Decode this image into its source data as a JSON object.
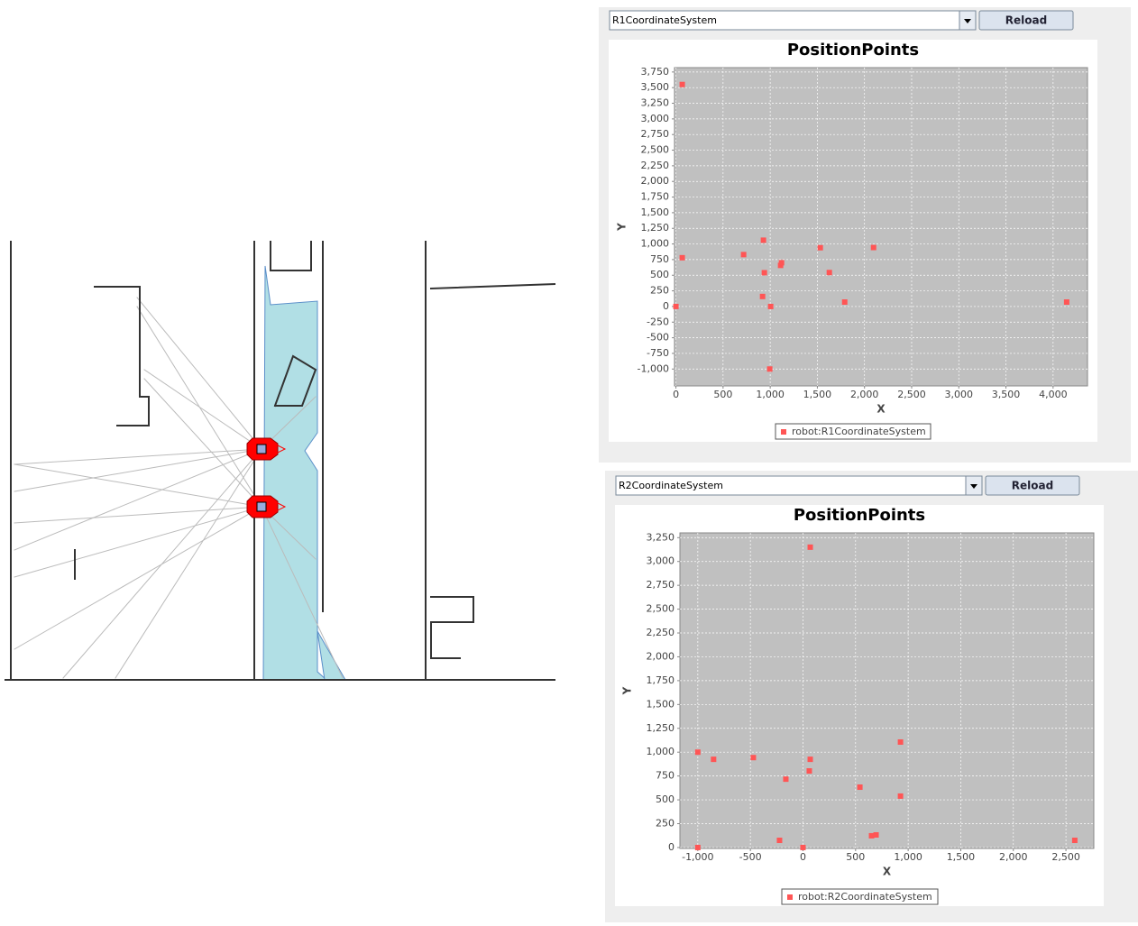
{
  "ui": {
    "panels": [
      {
        "selector": "R1CoordinateSystem",
        "button": "Reload"
      },
      {
        "selector": "R2CoordinateSystem",
        "button": "Reload"
      }
    ]
  },
  "chart_data": [
    {
      "type": "scatter",
      "title": "PositionPoints",
      "x_label": "X",
      "y_label": "Y",
      "grid": true,
      "xlim": [
        -15,
        4365
      ],
      "ylim": [
        -1270,
        3820
      ],
      "xticks": [
        0,
        500,
        {
          "value": 1000,
          "label": "1,000"
        },
        {
          "value": 1500,
          "label": "1,500"
        },
        {
          "value": 2000,
          "label": "2,000"
        },
        {
          "value": 2500,
          "label": "2,500"
        },
        {
          "value": 3000,
          "label": "3,000"
        },
        {
          "value": 3500,
          "label": "3,500"
        },
        {
          "value": 4000,
          "label": "4,000"
        }
      ],
      "yticks": [
        {
          "value": -1000,
          "label": "-1,000"
        },
        -750,
        -500,
        -250,
        0,
        250,
        500,
        750,
        {
          "value": 1000,
          "label": "1,000"
        },
        {
          "value": 1250,
          "label": "1,250"
        },
        {
          "value": 1500,
          "label": "1,500"
        },
        {
          "value": 1750,
          "label": "1,750"
        },
        {
          "value": 2000,
          "label": "2,000"
        },
        {
          "value": 2250,
          "label": "2,250"
        },
        {
          "value": 2500,
          "label": "2,500"
        },
        {
          "value": 2750,
          "label": "2,750"
        },
        {
          "value": 3000,
          "label": "3,000"
        },
        {
          "value": 3250,
          "label": "3,250"
        },
        {
          "value": 3500,
          "label": "3,500"
        },
        {
          "value": 3750,
          "label": "3,750"
        }
      ],
      "series": [
        {
          "name": "robot:R1CoordinateSystem",
          "color": "#ff5555",
          "x": [
            67,
            67,
            718,
            928,
            938,
            919,
            1005,
            995,
            1110,
            1120,
            1531,
            1627,
            1790,
            2096,
            4144,
            0
          ],
          "values": [
            3550,
            780,
            830,
            1060,
            540,
            160,
            0,
            -1000,
            657,
            700,
            940,
            543,
            71,
            943,
            71,
            0
          ]
        }
      ]
    },
    {
      "type": "scatter",
      "title": "PositionPoints",
      "x_label": "X",
      "y_label": "Y",
      "grid": true,
      "xlim": [
        -1170,
        2765
      ],
      "ylim": [
        -10,
        3300
      ],
      "xticks": [
        {
          "value": -1000,
          "label": "-1,000"
        },
        -500,
        0,
        500,
        {
          "value": 1000,
          "label": "1,000"
        },
        {
          "value": 1500,
          "label": "1,500"
        },
        {
          "value": 2000,
          "label": "2,000"
        },
        {
          "value": 2500,
          "label": "2,500"
        }
      ],
      "yticks": [
        0,
        250,
        500,
        750,
        {
          "value": 1000,
          "label": "1,000"
        },
        {
          "value": 1250,
          "label": "1,250"
        },
        {
          "value": 1500,
          "label": "1,500"
        },
        {
          "value": 1750,
          "label": "1,750"
        },
        {
          "value": 2000,
          "label": "2,000"
        },
        {
          "value": 2250,
          "label": "2,250"
        },
        {
          "value": 2500,
          "label": "2,500"
        },
        {
          "value": 2750,
          "label": "2,750"
        },
        {
          "value": 3000,
          "label": "3,000"
        },
        {
          "value": 3250,
          "label": "3,250"
        }
      ],
      "series": [
        {
          "name": "robot:R2CoordinateSystem",
          "color": "#ff5555",
          "x": [
            -1000,
            -1000,
            -850,
            -472,
            -163,
            -223,
            0,
            69,
            69,
            60,
            541,
            652,
            695,
            927,
            927,
            2584
          ],
          "values": [
            1000,
            0,
            925,
            943,
            717,
            75,
            0,
            3150,
            925,
            803,
            633,
            123,
            132,
            1106,
            539,
            75
          ]
        }
      ]
    }
  ]
}
